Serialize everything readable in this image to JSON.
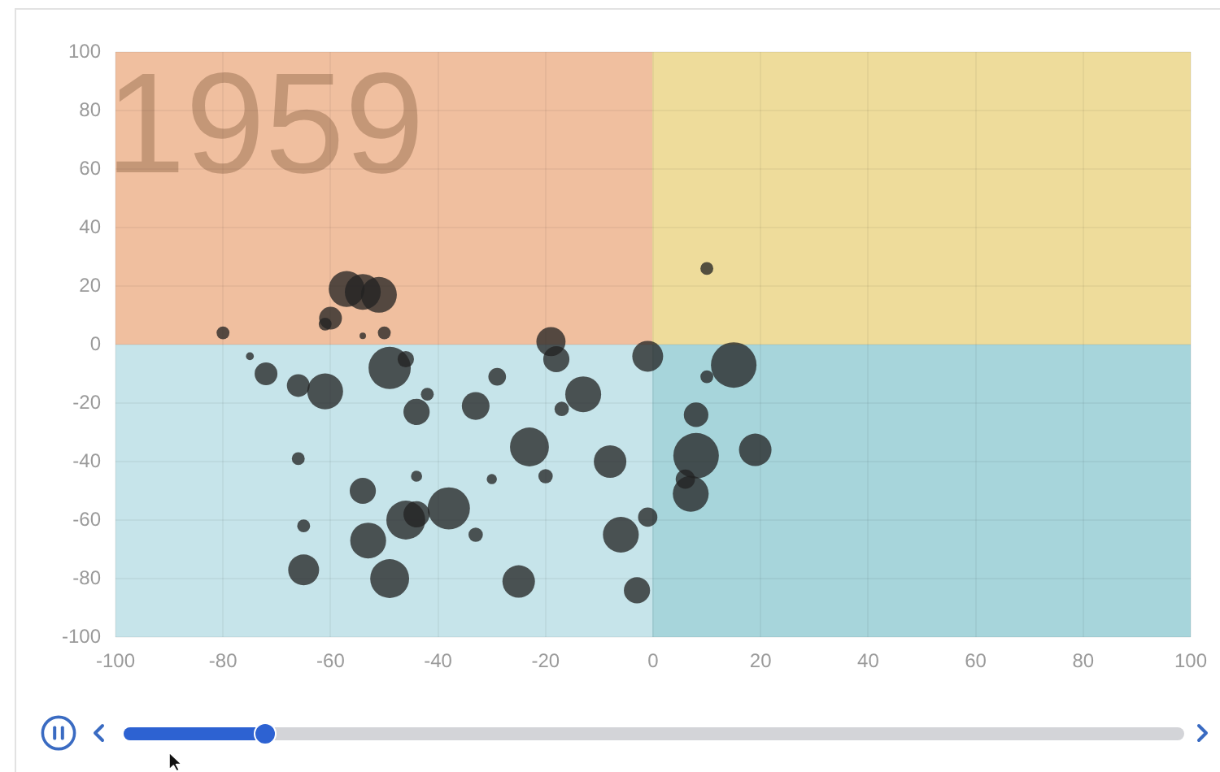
{
  "chart_data": {
    "type": "bubble",
    "annotations": [
      "1959"
    ],
    "x": [
      -80,
      -57,
      -54,
      -51,
      -60,
      -61,
      -54,
      -50,
      -75,
      -72,
      -66,
      -61,
      -49,
      -46,
      -42,
      -44,
      -66,
      -44,
      -54,
      -65,
      -53,
      -46,
      -44,
      -38,
      -65,
      -49,
      10,
      -19,
      -18,
      -1,
      15,
      10,
      -29,
      -33,
      -13,
      -17,
      8,
      -23,
      -8,
      8,
      19,
      -30,
      -20,
      -33,
      -6,
      -1,
      6,
      7,
      -25,
      -3
    ],
    "values": [
      4,
      19,
      18,
      17,
      9,
      7,
      3,
      4,
      -4,
      -10,
      -14,
      -16,
      -8,
      -5,
      -17,
      -23,
      -39,
      -45,
      -50,
      -62,
      -67,
      -60,
      -58,
      -56,
      -77,
      -80,
      26,
      1,
      -5,
      -4,
      -7,
      -11,
      -11,
      -21,
      -17,
      -22,
      -24,
      -35,
      -40,
      -38,
      -36,
      -46,
      -45,
      -65,
      -65,
      -59,
      -46,
      -51,
      -81,
      -84
    ],
    "sizes": [
      0.08,
      0.62,
      0.62,
      0.62,
      0.25,
      0.08,
      0.02,
      0.08,
      0.03,
      0.25,
      0.25,
      0.62,
      0.86,
      0.13,
      0.08,
      0.33,
      0.08,
      0.06,
      0.33,
      0.08,
      0.62,
      0.73,
      0.33,
      0.86,
      0.46,
      0.73,
      0.08,
      0.41,
      0.33,
      0.46,
      1,
      0.08,
      0.15,
      0.37,
      0.62,
      0.1,
      0.29,
      0.73,
      0.51,
      1,
      0.51,
      0.05,
      0.1,
      0.1,
      0.62,
      0.18,
      0.18,
      0.62,
      0.51,
      0.33
    ],
    "color": "#222222",
    "xlim": [
      -100,
      100
    ],
    "ylim": [
      -100,
      100
    ],
    "xticks": [
      -100,
      -80,
      -60,
      -40,
      -20,
      0,
      20,
      40,
      60,
      80,
      100
    ],
    "yticks": [
      -100,
      -80,
      -60,
      -40,
      -20,
      0,
      20,
      40,
      60,
      80,
      100
    ],
    "grid": true
  }
}
